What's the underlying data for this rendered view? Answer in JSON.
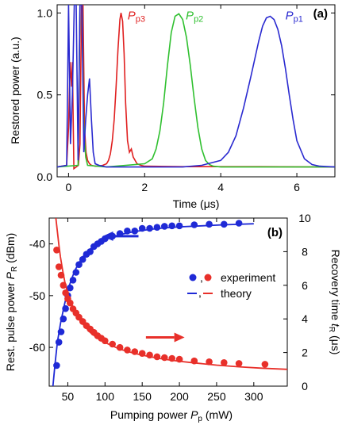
{
  "chart_data": [
    {
      "type": "line",
      "panel_label": "(a)",
      "xlabel": "Time (μs)",
      "ylabel": "Restored power (a.u.)",
      "xlim": [
        -0.3,
        7.0
      ],
      "ylim": [
        0.0,
        1.05
      ],
      "xticks": [
        0,
        2,
        4,
        6
      ],
      "yticks": [
        0.0,
        0.5,
        1.0
      ],
      "ytick_labels": [
        "0.0",
        "0.5",
        "1.0"
      ],
      "grid": false,
      "series": [
        {
          "name": "P_p3",
          "label_main": "P",
          "label_sub": "p3",
          "color": "#e02020",
          "label_at": [
            1.55,
            0.96
          ],
          "x": [
            -0.3,
            -0.05,
            0.0,
            0.04,
            0.08,
            0.1,
            0.14,
            0.2,
            0.26,
            0.3,
            0.34,
            0.38,
            0.42,
            0.46,
            0.5,
            0.55,
            0.6,
            0.7,
            0.8,
            0.9,
            1.0,
            1.05,
            1.1,
            1.15,
            1.2,
            1.25,
            1.3,
            1.35,
            1.38,
            1.42,
            1.46,
            1.5,
            1.55,
            1.6,
            1.65,
            1.7,
            1.8,
            1.9,
            2.0,
            3.0,
            5.0,
            7.0
          ],
          "y": [
            0.06,
            0.07,
            0.3,
            0.7,
            0.55,
            0.7,
            0.05,
            0.06,
            0.07,
            0.2,
            1.05,
            1.05,
            0.3,
            0.15,
            0.1,
            0.08,
            0.07,
            0.065,
            0.065,
            0.07,
            0.08,
            0.1,
            0.14,
            0.22,
            0.35,
            0.55,
            0.78,
            0.96,
            1.0,
            0.95,
            0.75,
            0.45,
            0.22,
            0.15,
            0.17,
            0.12,
            0.08,
            0.07,
            0.065,
            0.062,
            0.062,
            0.06
          ]
        },
        {
          "name": "P_p2",
          "label_main": "P",
          "label_sub": "p2",
          "color": "#30c030",
          "label_at": [
            3.08,
            0.96
          ],
          "x": [
            -0.3,
            0.25,
            0.3,
            0.35,
            0.4,
            0.45,
            0.5,
            1.0,
            2.0,
            2.2,
            2.3,
            2.4,
            2.5,
            2.6,
            2.7,
            2.8,
            2.9,
            3.0,
            3.1,
            3.2,
            3.3,
            3.4,
            3.5,
            3.6,
            3.7,
            3.8,
            4.0,
            5.0,
            7.0
          ],
          "y": [
            0.06,
            0.07,
            1.05,
            1.05,
            0.3,
            0.12,
            0.07,
            0.06,
            0.08,
            0.11,
            0.17,
            0.28,
            0.45,
            0.68,
            0.88,
            0.98,
            0.995,
            0.96,
            0.85,
            0.68,
            0.48,
            0.3,
            0.17,
            0.1,
            0.075,
            0.065,
            0.06,
            0.06,
            0.06
          ]
        },
        {
          "name": "P_p1",
          "label_main": "P",
          "label_sub": "p1",
          "color": "#2a2ad0",
          "label_at": [
            5.7,
            0.96
          ],
          "x": [
            -0.3,
            -0.05,
            0.0,
            0.05,
            0.1,
            0.15,
            0.2,
            0.25,
            0.3,
            0.35,
            0.4,
            0.45,
            0.5,
            0.55,
            0.6,
            0.65,
            0.7,
            0.8,
            1.0,
            2.0,
            3.0,
            3.5,
            4.0,
            4.2,
            4.4,
            4.6,
            4.8,
            5.0,
            5.1,
            5.2,
            5.3,
            5.4,
            5.5,
            5.6,
            5.7,
            5.8,
            5.9,
            6.0,
            6.2,
            6.4,
            6.6,
            7.0
          ],
          "y": [
            0.06,
            0.07,
            1.05,
            0.2,
            0.5,
            1.05,
            1.05,
            0.1,
            1.05,
            1.05,
            0.15,
            0.35,
            0.5,
            0.6,
            0.35,
            0.15,
            0.08,
            0.07,
            0.06,
            0.06,
            0.06,
            0.07,
            0.1,
            0.15,
            0.25,
            0.42,
            0.62,
            0.83,
            0.92,
            0.97,
            0.98,
            0.96,
            0.9,
            0.8,
            0.66,
            0.5,
            0.35,
            0.22,
            0.11,
            0.075,
            0.065,
            0.06
          ]
        }
      ]
    },
    {
      "type": "scatter",
      "panel_label": "(b)",
      "xlabel_main": "Pumping power ",
      "xlabel_var": "P",
      "xlabel_sub": "p",
      "xlabel_unit": " (mW)",
      "xlabel": "Pumping power P_p (mW)",
      "ylabel_main": "Rest. pulse power ",
      "ylabel_var": "P",
      "ylabel_sub": "R",
      "ylabel_unit": " (dBm)",
      "ylabel": "Rest. pulse power P_R (dBm)",
      "y2label_main": "Recovery time ",
      "y2label_var": "t",
      "y2label_sub": "R",
      "y2label_unit": " (μs)",
      "y2label": "Recovery time t_R (μs)",
      "xlim": [
        25,
        345
      ],
      "ylim": [
        -67.5,
        -35
      ],
      "y2lim": [
        0,
        10
      ],
      "xticks": [
        50,
        100,
        150,
        200,
        250,
        300
      ],
      "yticks": [
        -60,
        -50,
        -40
      ],
      "y2ticks": [
        0,
        2,
        4,
        6,
        8,
        10
      ],
      "grid": false,
      "legend": {
        "placement": "center-right",
        "entries": [
          {
            "marker_label": ",",
            "text": "experiment"
          },
          {
            "marker_label": ",",
            "text": "theory"
          }
        ]
      },
      "series": [
        {
          "name": "experiment (P_R)",
          "axis": "left",
          "kind": "points",
          "color": "#1f2ad6",
          "x": [
            35,
            38,
            41,
            44,
            47,
            50,
            53,
            57,
            61,
            65,
            70,
            75,
            80,
            85,
            90,
            95,
            100,
            110,
            120,
            130,
            140,
            150,
            160,
            170,
            180,
            190,
            200,
            220,
            240,
            260,
            280
          ],
          "y": [
            -63.5,
            -59,
            -57,
            -54.5,
            -52.5,
            -50,
            -48.5,
            -47,
            -45.5,
            -44,
            -43,
            -42,
            -41.5,
            -40.5,
            -40,
            -39.5,
            -39,
            -38.5,
            -38,
            -37.5,
            -37.5,
            -37,
            -37,
            -36.8,
            -36.6,
            -36.5,
            -36.5,
            -36.3,
            -36.2,
            -36.2,
            -36
          ]
        },
        {
          "name": "theory (P_R)",
          "axis": "left",
          "kind": "line",
          "color": "#1f2ad6",
          "x": [
            30,
            33,
            36,
            40,
            45,
            50,
            55,
            60,
            70,
            80,
            90,
            100,
            120,
            140,
            160,
            180,
            200,
            230,
            260,
            300
          ],
          "y": [
            -67.5,
            -63,
            -59,
            -55.5,
            -52,
            -49,
            -46.8,
            -45,
            -42.5,
            -41,
            -40,
            -39.2,
            -38.2,
            -37.6,
            -37.2,
            -36.9,
            -36.7,
            -36.5,
            -36.3,
            -36.1
          ]
        },
        {
          "name": "experiment (t_R)",
          "axis": "right",
          "kind": "points",
          "color": "#e8302a",
          "x": [
            35,
            38,
            41,
            44,
            47,
            50,
            53,
            57,
            61,
            65,
            70,
            75,
            80,
            85,
            90,
            95,
            100,
            110,
            120,
            130,
            140,
            150,
            160,
            170,
            180,
            190,
            200,
            220,
            240,
            260,
            280,
            315
          ],
          "y": [
            8.1,
            7.1,
            6.6,
            6.0,
            5.55,
            5.2,
            4.95,
            4.6,
            4.35,
            4.1,
            3.85,
            3.6,
            3.4,
            3.2,
            3.0,
            2.85,
            2.7,
            2.5,
            2.3,
            2.15,
            2.05,
            1.95,
            1.85,
            1.75,
            1.7,
            1.65,
            1.6,
            1.5,
            1.45,
            1.4,
            1.35,
            1.3
          ]
        },
        {
          "name": "theory (t_R)",
          "axis": "right",
          "kind": "line",
          "color": "#e8302a",
          "x": [
            34,
            36,
            38,
            40,
            43,
            46,
            50,
            55,
            60,
            70,
            80,
            90,
            100,
            120,
            140,
            160,
            180,
            200,
            220,
            250,
            280,
            310,
            345
          ],
          "y": [
            10.0,
            9.2,
            8.4,
            7.7,
            6.9,
            6.2,
            5.5,
            4.9,
            4.4,
            3.7,
            3.2,
            2.85,
            2.6,
            2.2,
            1.95,
            1.75,
            1.6,
            1.48,
            1.38,
            1.25,
            1.15,
            1.07,
            1.0
          ]
        }
      ],
      "arrows": [
        {
          "direction": "left",
          "color": "#1f2ad6",
          "from": [
            145,
            -38.5
          ],
          "to": [
            97,
            -38.5
          ]
        },
        {
          "direction": "right",
          "color": "#e8302a",
          "from": [
            155,
            2.9
          ],
          "to": [
            207,
            2.9
          ]
        }
      ]
    }
  ]
}
